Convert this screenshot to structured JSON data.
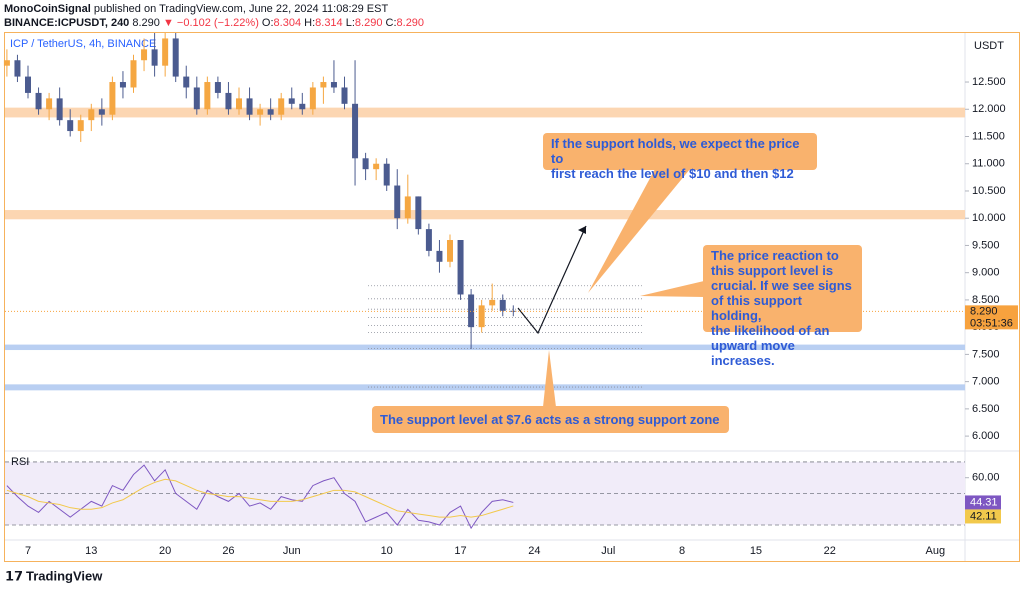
{
  "header": {
    "author": "MonoCoinSignal",
    "published": "published on TradingView.com, June 22, 2024 11:08:29 EST",
    "symbol": "BINANCE:ICPUSDT, 240",
    "price": "8.290",
    "change": "▼ −0.102 (−1.22%)",
    "ohlc": [
      {
        "label": "O:",
        "value": "8.304"
      },
      {
        "label": "H:",
        "value": "8.314"
      },
      {
        "label": "L:",
        "value": "8.290"
      },
      {
        "label": "C:",
        "value": "8.290"
      }
    ]
  },
  "footer": {
    "logo": "TradingView"
  },
  "annotations": [
    "If the support holds, we expect the price to\nfirst reach the level of $10 and then $12",
    "The price reaction to\nthis support level is\ncrucial. If we see signs\nof this support holding,\nthe likelihood of an\nupward move increases.",
    "The support level at $7.6 acts as a strong support zone"
  ],
  "chart_data": [
    {
      "type": "candlestick",
      "legend": "ICP / TetherUS, 4h, BINANCE",
      "currency": "USDT",
      "up_color": "#f5a742",
      "down_color": "#4b5b8f",
      "categories": [
        null,
        null,
        "7",
        null,
        null,
        null,
        null,
        null,
        "13",
        null,
        null,
        null,
        null,
        null,
        null,
        "20",
        null,
        null,
        null,
        null,
        null,
        "26",
        null,
        null,
        null,
        null,
        null,
        "Jun",
        null,
        null,
        null,
        null,
        null,
        null,
        null,
        null,
        "10",
        null,
        null,
        null,
        null,
        null,
        null,
        "17",
        null,
        null,
        null,
        null,
        null,
        null,
        "24",
        null,
        null,
        null,
        null,
        null,
        null,
        "Jul",
        null,
        null,
        null,
        null,
        null,
        null,
        "8",
        null,
        null,
        null,
        null,
        null,
        null,
        "15",
        null,
        null,
        null,
        null,
        null,
        null,
        "22",
        null,
        null,
        null,
        null,
        null,
        null,
        null,
        null,
        null,
        "Aug"
      ],
      "open": [
        12.8,
        12.9,
        12.6,
        12.3,
        12.0,
        12.2,
        11.8,
        11.6,
        11.8,
        12.0,
        11.9,
        12.5,
        12.4,
        12.9,
        13.1,
        12.8,
        13.3,
        12.6,
        12.4,
        12.0,
        12.5,
        12.3,
        12.0,
        12.2,
        11.9,
        12.0,
        11.9,
        12.2,
        12.1,
        12.0,
        12.4,
        12.5,
        12.4,
        12.1,
        11.1,
        10.9,
        11.0,
        10.6,
        10.0,
        10.4,
        9.8,
        9.4,
        9.2,
        9.6,
        8.6,
        8.0,
        8.4,
        8.5,
        8.3,
        null,
        null,
        null,
        null,
        null,
        null,
        null,
        null,
        null,
        null,
        null,
        null,
        null,
        null,
        null,
        null,
        null,
        null,
        null,
        null,
        null,
        null,
        null,
        null,
        null,
        null,
        null,
        null,
        null,
        null,
        null,
        null,
        null,
        null,
        null,
        null,
        null,
        null,
        null,
        null
      ],
      "high": [
        13.1,
        13.0,
        12.8,
        12.4,
        12.3,
        12.4,
        12.0,
        11.9,
        12.1,
        12.2,
        12.6,
        12.7,
        13.0,
        13.3,
        13.4,
        13.4,
        13.4,
        12.8,
        12.6,
        12.6,
        12.6,
        12.5,
        12.4,
        12.4,
        12.1,
        12.2,
        12.3,
        12.4,
        12.3,
        12.5,
        12.6,
        12.9,
        12.6,
        12.9,
        11.2,
        11.1,
        11.1,
        10.9,
        10.8,
        10.4,
        9.9,
        9.6,
        9.7,
        9.6,
        8.7,
        8.5,
        8.8,
        8.6,
        8.4,
        null,
        null,
        null,
        null,
        null,
        null,
        null,
        null,
        null,
        null,
        null,
        null,
        null,
        null,
        null,
        null,
        null,
        null,
        null,
        null,
        null,
        null,
        null,
        null,
        null,
        null,
        null,
        null,
        null,
        null,
        null,
        null,
        null,
        null,
        null,
        null,
        null,
        null,
        null,
        null
      ],
      "low": [
        12.6,
        12.5,
        12.2,
        11.9,
        11.8,
        11.7,
        11.5,
        11.4,
        11.6,
        11.7,
        11.8,
        12.2,
        12.3,
        12.7,
        12.6,
        12.6,
        12.5,
        12.2,
        11.9,
        11.9,
        12.2,
        11.9,
        11.9,
        11.8,
        11.7,
        11.8,
        11.8,
        12.0,
        11.9,
        11.9,
        12.1,
        12.3,
        12.0,
        10.6,
        10.7,
        10.7,
        10.5,
        9.8,
        9.9,
        9.7,
        9.3,
        9.0,
        9.1,
        8.5,
        7.6,
        7.9,
        8.3,
        8.2,
        8.2,
        null,
        null,
        null,
        null,
        null,
        null,
        null,
        null,
        null,
        null,
        null,
        null,
        null,
        null,
        null,
        null,
        null,
        null,
        null,
        null,
        null,
        null,
        null,
        null,
        null,
        null,
        null,
        null,
        null,
        null,
        null,
        null,
        null,
        null,
        null,
        null,
        null,
        null,
        null,
        null
      ],
      "close": [
        12.9,
        12.6,
        12.3,
        12.0,
        12.2,
        11.8,
        11.6,
        11.8,
        12.0,
        11.9,
        12.5,
        12.4,
        12.9,
        13.1,
        12.8,
        13.3,
        12.6,
        12.4,
        12.0,
        12.5,
        12.3,
        12.0,
        12.2,
        11.9,
        12.0,
        11.9,
        12.2,
        12.1,
        12.0,
        12.4,
        12.5,
        12.4,
        12.1,
        11.1,
        10.9,
        11.0,
        10.6,
        10.0,
        10.4,
        9.8,
        9.4,
        9.2,
        9.6,
        8.6,
        8.0,
        8.4,
        8.5,
        8.3,
        8.29,
        null,
        null,
        null,
        null,
        null,
        null,
        null,
        null,
        null,
        null,
        null,
        null,
        null,
        null,
        null,
        null,
        null,
        null,
        null,
        null,
        null,
        null,
        null,
        null,
        null,
        null,
        null,
        null,
        null,
        null,
        null,
        null,
        null,
        null,
        null,
        null,
        null,
        null,
        null,
        null
      ],
      "last_price_label": "8.290",
      "countdown": "03:51:36",
      "last_price_color": "#f7a23e",
      "ylim": [
        5.8,
        13.4
      ],
      "yticks": [
        {
          "value": 6,
          "label": "6.000"
        },
        {
          "value": 6.5,
          "label": "6.500"
        },
        {
          "value": 7,
          "label": "7.000"
        },
        {
          "value": 7.5,
          "label": "7.500"
        },
        {
          "value": 8,
          "label": "8.000"
        },
        {
          "value": 8.5,
          "label": "8.500"
        },
        {
          "value": 9,
          "label": "9.000"
        },
        {
          "value": 9.5,
          "label": "9.500"
        },
        {
          "value": 10,
          "label": "10.000"
        },
        {
          "value": 10.5,
          "label": "10.500"
        },
        {
          "value": 11,
          "label": "11.000"
        },
        {
          "value": 11.5,
          "label": "11.500"
        },
        {
          "value": 12,
          "label": "12.000"
        },
        {
          "value": 12.5,
          "label": "12.500"
        }
      ],
      "zones": [
        {
          "range": [
            11.85,
            12.03
          ],
          "color": "#fcd6b2"
        },
        {
          "range": [
            9.98,
            10.15
          ],
          "color": "#fcd6b2"
        },
        {
          "range": [
            7.58,
            7.68
          ],
          "color": "#b9cff2"
        },
        {
          "range": [
            6.84,
            6.95
          ],
          "color": "#b9cff2"
        }
      ],
      "levels": [
        8.76,
        8.52,
        8.33,
        8.18,
        8.03,
        7.9,
        7.61,
        6.9
      ]
    },
    {
      "type": "line",
      "legend": "RSI",
      "series": [
        {
          "name": "RSI",
          "color": "#7e57c2",
          "values": [
            55,
            48,
            42,
            38,
            45,
            40,
            35,
            40,
            45,
            42,
            55,
            52,
            62,
            68,
            58,
            65,
            50,
            45,
            40,
            52,
            48,
            45,
            50,
            42,
            44,
            40,
            48,
            46,
            45,
            55,
            58,
            60,
            50,
            45,
            32,
            35,
            38,
            30,
            40,
            33,
            32,
            30,
            38,
            42,
            28,
            38,
            45,
            46,
            44.31,
            null,
            null,
            null,
            null,
            null,
            null,
            null,
            null,
            null,
            null,
            null,
            null,
            null,
            null,
            null,
            null,
            null,
            null,
            null,
            null,
            null,
            null,
            null,
            null,
            null,
            null,
            null,
            null,
            null,
            null,
            null,
            null,
            null,
            null,
            null,
            null,
            null,
            null,
            null,
            null
          ]
        },
        {
          "name": "RSI-based MA",
          "color": "#f2c94c",
          "values": [
            52,
            50,
            48,
            45,
            44,
            43,
            41,
            40,
            40,
            41,
            44,
            46,
            50,
            54,
            57,
            59,
            58,
            55,
            52,
            50,
            49,
            48,
            48,
            47,
            46,
            45,
            45,
            45,
            46,
            48,
            50,
            52,
            52,
            51,
            48,
            45,
            42,
            39,
            38,
            37,
            36,
            35,
            35,
            36,
            35,
            36,
            38,
            40,
            42.11,
            null,
            null,
            null,
            null,
            null,
            null,
            null,
            null,
            null,
            null,
            null,
            null,
            null,
            null,
            null,
            null,
            null,
            null,
            null,
            null,
            null,
            null,
            null,
            null,
            null,
            null,
            null,
            null,
            null,
            null,
            null,
            null,
            null,
            null,
            null,
            null,
            null,
            null,
            null,
            null
          ]
        }
      ],
      "ylim": [
        22.4,
        74.4
      ],
      "yticks": [
        {
          "value": 60,
          "label": "60.00"
        }
      ],
      "band": [
        30,
        70
      ],
      "levels": [
        70,
        50,
        30
      ],
      "band_color": "#f1ecf9"
    }
  ]
}
